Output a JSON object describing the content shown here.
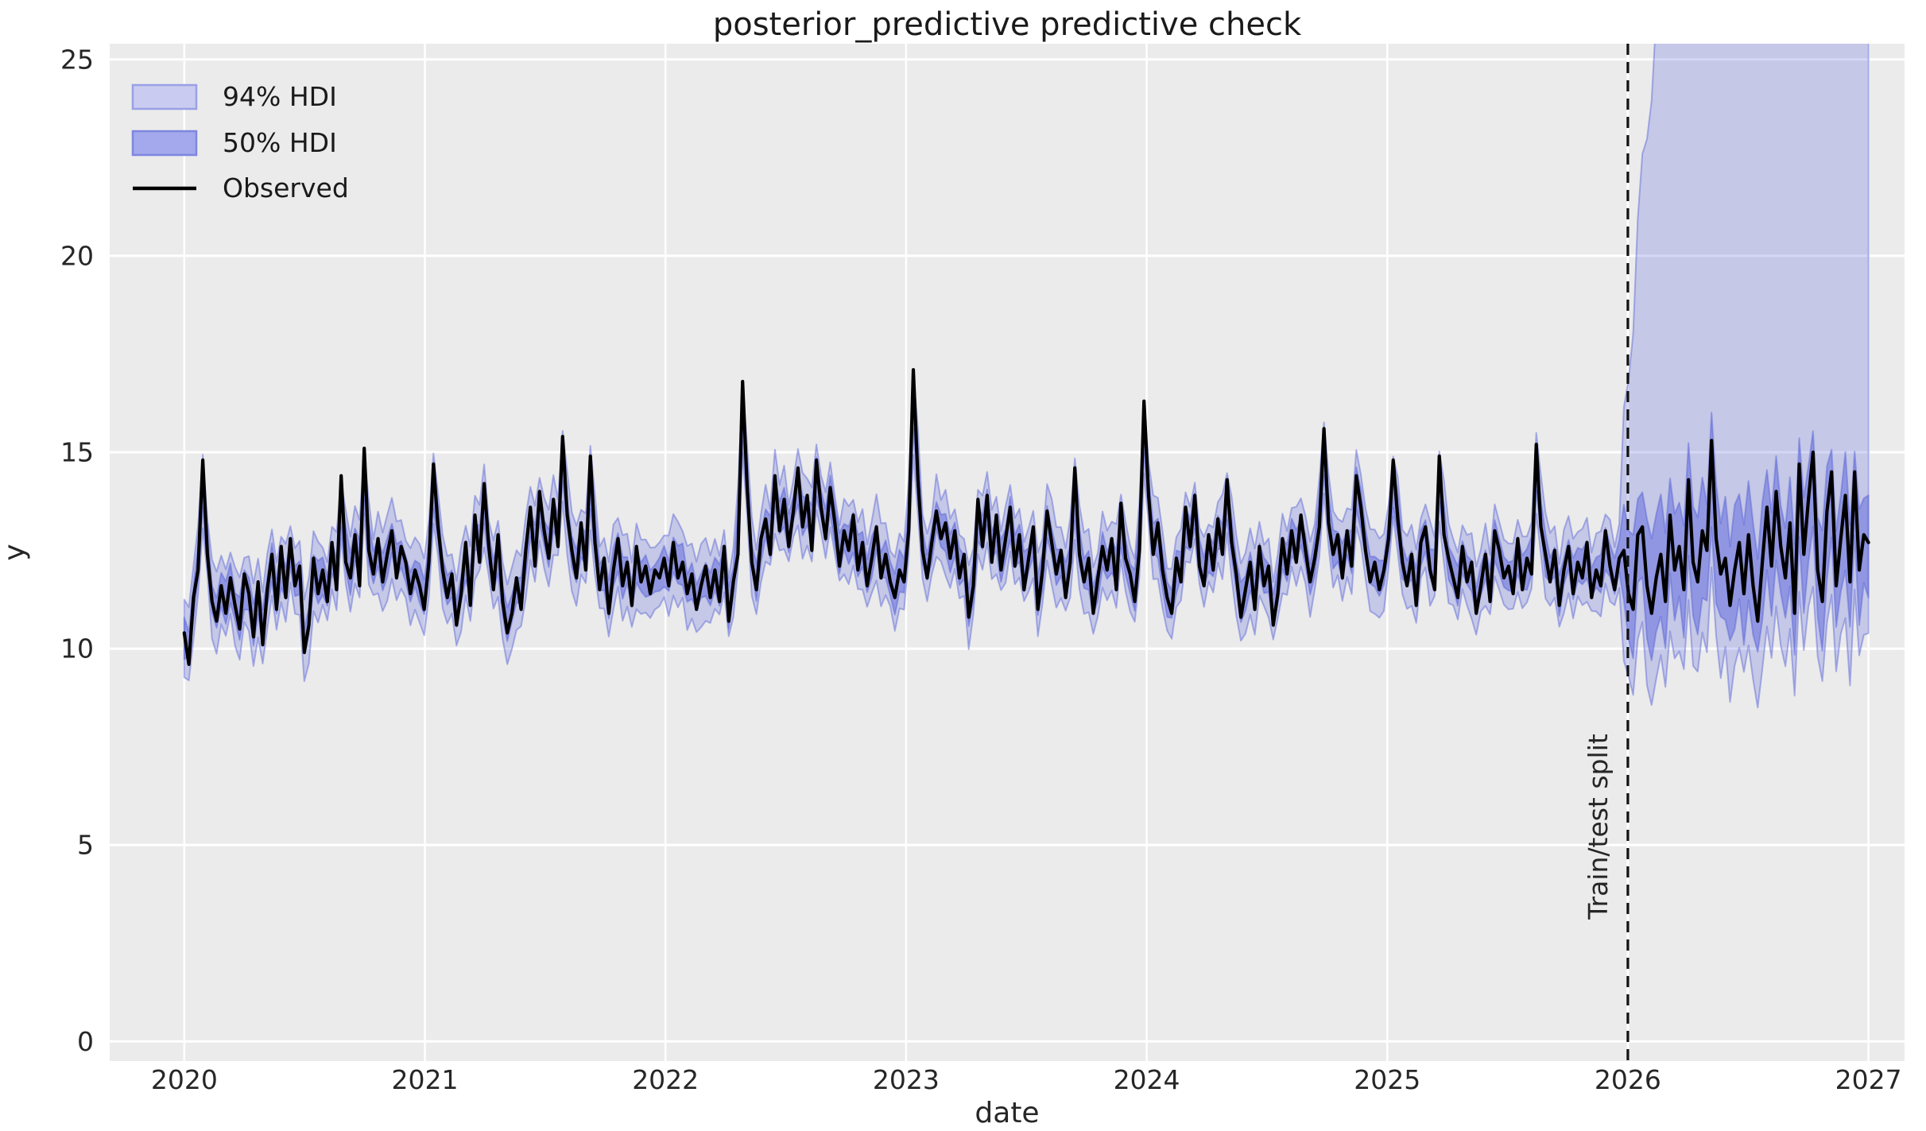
{
  "chart_data": {
    "type": "line",
    "title": "posterior_predictive predictive check",
    "axes": {
      "xlabel": "date",
      "ylabel": "y",
      "xlim": [
        2019.69,
        2027.15
      ],
      "ylim": [
        -0.5,
        25.4
      ],
      "xticks": [
        2020,
        2021,
        2022,
        2023,
        2024,
        2025,
        2026,
        2027
      ],
      "xticklabels": [
        "2020",
        "2021",
        "2022",
        "2023",
        "2024",
        "2025",
        "2026",
        "2027"
      ],
      "yticks": [
        0,
        5,
        10,
        15,
        20,
        25
      ],
      "yticklabels": [
        "0",
        "5",
        "10",
        "15",
        "20",
        "25"
      ],
      "grid": true
    },
    "legend": {
      "position": "upper-left",
      "items": [
        {
          "label": "94% HDI",
          "swatch": "hdi94-patch"
        },
        {
          "label": "50% HDI",
          "swatch": "hdi50-patch"
        },
        {
          "label": "Observed",
          "swatch": "black-line"
        }
      ]
    },
    "annotations": {
      "split_label": "Train/test split",
      "split_x": 2026.0
    },
    "x_start": 2020.0,
    "x_step_years": 0.0191781,
    "split_index": 312,
    "observed": [
      10.4,
      9.6,
      11.3,
      12.0,
      14.8,
      12.4,
      11.2,
      10.7,
      11.6,
      10.9,
      11.8,
      11.1,
      10.5,
      11.9,
      11.4,
      10.3,
      11.7,
      10.1,
      11.5,
      12.4,
      11.0,
      12.6,
      11.3,
      12.8,
      11.6,
      12.1,
      9.9,
      10.6,
      12.3,
      11.4,
      12.0,
      11.2,
      12.7,
      11.5,
      14.4,
      12.2,
      11.8,
      12.9,
      11.6,
      15.1,
      12.5,
      11.9,
      12.8,
      11.7,
      12.4,
      13.0,
      11.8,
      12.6,
      12.2,
      11.4,
      12.0,
      11.6,
      11.0,
      12.2,
      14.7,
      13.1,
      12.0,
      11.3,
      11.9,
      10.6,
      11.4,
      12.7,
      11.1,
      13.4,
      12.2,
      14.2,
      12.6,
      11.5,
      12.9,
      11.2,
      10.4,
      10.9,
      11.8,
      11.0,
      12.5,
      13.6,
      12.1,
      14.0,
      13.0,
      12.3,
      13.8,
      12.6,
      15.4,
      13.4,
      12.5,
      11.8,
      13.2,
      12.0,
      14.9,
      12.7,
      11.5,
      12.3,
      10.9,
      12.0,
      12.8,
      11.6,
      12.2,
      11.1,
      12.6,
      11.7,
      12.1,
      11.4,
      12.0,
      11.8,
      12.3,
      11.6,
      12.7,
      11.8,
      12.2,
      11.4,
      11.9,
      11.0,
      11.6,
      12.1,
      11.3,
      12.0,
      11.2,
      12.6,
      10.7,
      11.7,
      12.4,
      16.8,
      14.1,
      12.2,
      11.5,
      12.8,
      13.3,
      12.4,
      14.4,
      13.0,
      13.8,
      12.6,
      13.5,
      14.6,
      13.1,
      13.9,
      12.5,
      14.8,
      13.6,
      12.8,
      14.1,
      13.2,
      12.1,
      13.0,
      12.5,
      13.4,
      12.0,
      12.7,
      11.6,
      12.3,
      13.1,
      11.8,
      12.4,
      11.7,
      11.3,
      12.0,
      11.7,
      13.0,
      17.1,
      14.3,
      12.5,
      11.8,
      12.7,
      13.5,
      12.8,
      13.2,
      12.3,
      13.0,
      11.8,
      12.4,
      10.8,
      11.6,
      13.8,
      12.6,
      13.9,
      12.2,
      13.4,
      12.0,
      12.8,
      13.6,
      12.1,
      12.9,
      11.5,
      12.3,
      13.1,
      11.0,
      12.0,
      13.5,
      12.7,
      11.9,
      12.5,
      11.3,
      12.2,
      14.6,
      12.4,
      11.7,
      12.3,
      10.9,
      11.8,
      12.6,
      12.0,
      12.8,
      11.5,
      13.7,
      12.3,
      11.9,
      11.2,
      12.5,
      16.3,
      13.9,
      12.4,
      13.2,
      12.0,
      11.3,
      10.9,
      12.3,
      11.7,
      13.6,
      12.6,
      13.9,
      12.1,
      11.6,
      12.9,
      12.0,
      13.3,
      12.4,
      14.3,
      12.7,
      11.9,
      10.8,
      11.5,
      12.2,
      11.0,
      12.6,
      11.6,
      12.1,
      10.6,
      11.4,
      12.8,
      11.9,
      13.0,
      12.2,
      13.4,
      12.5,
      11.7,
      12.3,
      13.1,
      15.6,
      13.2,
      12.4,
      12.9,
      11.8,
      13.0,
      12.1,
      14.4,
      13.6,
      12.5,
      11.7,
      12.2,
      11.5,
      12.0,
      12.8,
      14.8,
      13.3,
      12.2,
      11.6,
      12.4,
      11.1,
      12.7,
      13.1,
      12.0,
      11.5,
      14.9,
      12.9,
      12.3,
      11.8,
      11.3,
      12.6,
      11.7,
      12.2,
      10.9,
      11.6,
      12.4,
      11.2,
      13.0,
      12.5,
      11.8,
      12.1,
      11.4,
      12.8,
      11.5,
      12.3,
      11.9,
      15.2,
      13.1,
      12.4,
      11.7,
      12.5,
      11.1,
      12.0,
      12.6,
      11.4,
      12.2,
      11.8,
      12.7,
      11.3,
      12.0,
      11.6,
      13.0,
      12.1,
      11.5,
      12.3,
      12.5,
      11.4,
      11.0,
      12.9,
      13.1,
      11.6,
      10.9,
      11.8,
      12.4,
      11.2,
      13.4,
      12.0,
      12.6,
      11.5,
      14.3,
      12.2,
      11.7,
      13.0,
      12.5,
      15.3,
      12.8,
      11.9,
      12.3,
      11.1,
      12.0,
      12.7,
      11.4,
      12.9,
      11.6,
      10.7,
      12.2,
      13.6,
      12.1,
      14.0,
      12.6,
      11.8,
      13.2,
      10.9,
      14.7,
      12.4,
      13.8,
      15.0,
      12.0,
      11.2,
      13.5,
      14.5,
      11.6,
      12.8,
      13.9,
      11.7,
      14.5,
      12.0,
      12.9,
      12.7
    ],
    "bands": {
      "center": {
        "train_self_weight": 0.7,
        "train_neighbor_weight": 0.15,
        "train_jitter": 0.3,
        "test_obs_weight": 0.75,
        "test_base": 12.3
      },
      "hdi50": {
        "train_halfwidth_base": 0.3,
        "train_halfwidth_jitter": 0.25,
        "test_halfwidth_base": 1.0,
        "test_halfwidth_jitter": 0.6
      },
      "hdi94": {
        "train_halfwidth_base": 0.7,
        "train_halfwidth_jitter": 0.4,
        "test_lower_offset_base": 2.2,
        "test_lower_offset_jitter": 0.6,
        "test_upper_offset": 2.2,
        "test_upper_slope_per_step": 1.5,
        "test_upper_cap": 70
      }
    },
    "colors": {
      "figure_bg": "#ffffff",
      "plot_bg": "#ebebeb",
      "grid": "#ffffff",
      "observed": "#000000",
      "hdi94_fill": "rgba(100,110,220,0.28)",
      "hdi50_fill": "rgba(100,110,220,0.55)",
      "band_edge": "rgba(85,95,215,0.45)",
      "split_line": "#111111",
      "text": "#262626",
      "legend_94_fill": "#c9ccf0",
      "legend_94_edge": "#9aa0e5",
      "legend_50_fill": "#a3a9ec",
      "legend_50_edge": "#7e86e0"
    }
  }
}
